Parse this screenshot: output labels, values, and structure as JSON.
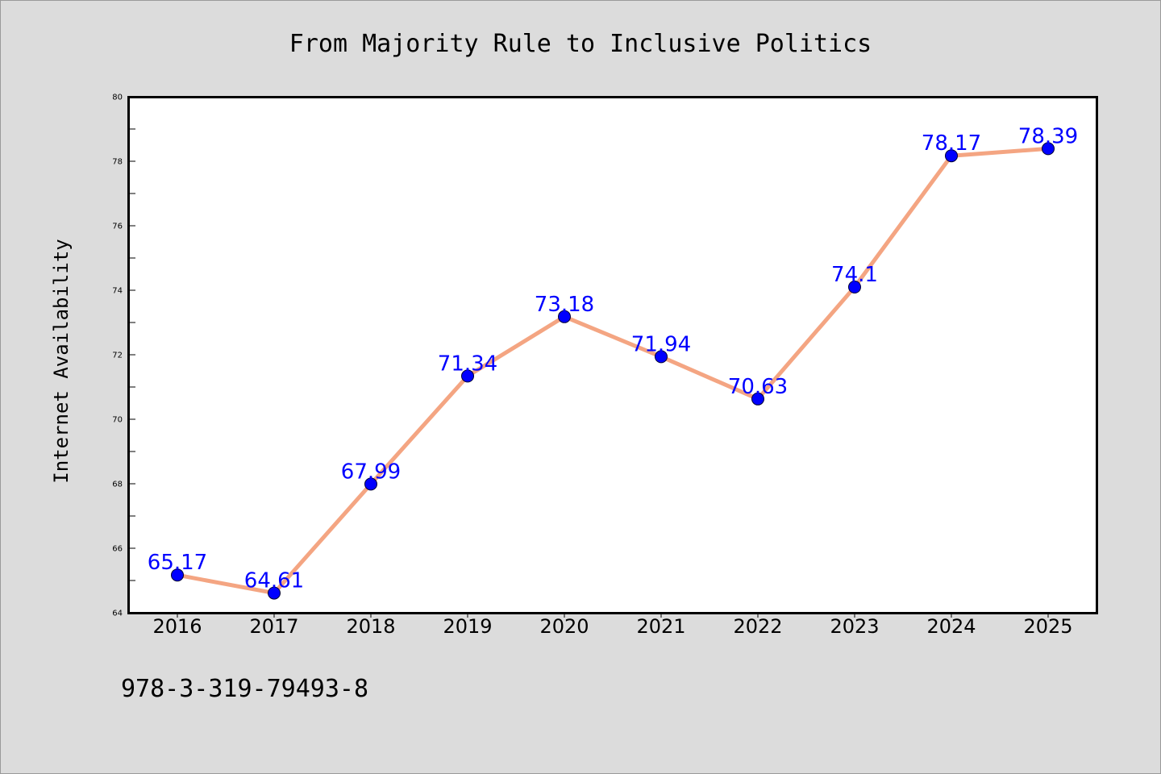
{
  "chart_data": {
    "type": "line",
    "title": "From Majority Rule to Inclusive Politics",
    "xlabel": "",
    "ylabel": "Internet Availability",
    "categories": [
      "2016",
      "2017",
      "2018",
      "2019",
      "2020",
      "2021",
      "2022",
      "2023",
      "2024",
      "2025"
    ],
    "series": [
      {
        "values": [
          65.17,
          64.61,
          67.99,
          71.34,
          73.18,
          71.94,
          70.63,
          74.1,
          78.17,
          78.39
        ],
        "data_labels": [
          "65.17",
          "64.61",
          "67.99",
          "71.34",
          "73.18",
          "71.94",
          "70.63",
          "74.1",
          "78.17",
          "78.39"
        ]
      }
    ],
    "ylim": [
      64,
      80
    ],
    "yticks": [
      "64",
      "66",
      "68",
      "70",
      "72",
      "74",
      "76",
      "78",
      "80"
    ],
    "grid": false,
    "legend": "none",
    "line_color": "#f4a582",
    "marker_color": "#0000ff",
    "label_color": "#0000ff"
  },
  "footnote": "978-3-319-79493-8"
}
